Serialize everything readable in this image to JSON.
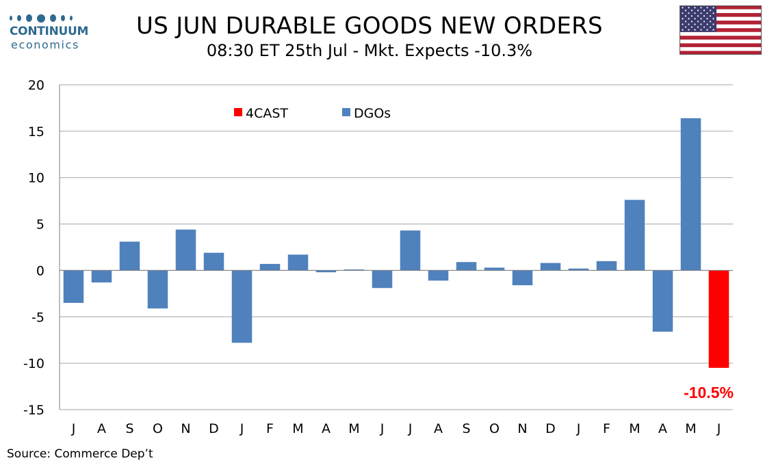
{
  "logo": {
    "name": "CONTINUUM",
    "sub": "economics"
  },
  "header": {
    "title": "US JUN DURABLE GOODS NEW ORDERS",
    "subtitle": "08:30 ET 25th Jul - Mkt. Expects -10.3%"
  },
  "footer": {
    "source": "Source: Commerce Dep’t"
  },
  "flag_icon": "us-flag-icon",
  "colors": {
    "dgo": "#4f81bd",
    "forecast": "#ff0000",
    "grid": "#a6a6a6",
    "logo": "#2e6a8f"
  },
  "chart_data": {
    "type": "bar",
    "title": "US JUN DURABLE GOODS NEW ORDERS",
    "xlabel": "",
    "ylabel": "",
    "ylim": [
      -15,
      20
    ],
    "yticks": [
      -15,
      -10,
      -5,
      0,
      5,
      10,
      15,
      20
    ],
    "grid": true,
    "legend_position": "top-center",
    "categories": [
      "J",
      "A",
      "S",
      "O",
      "N",
      "D",
      "J",
      "F",
      "M",
      "A",
      "M",
      "J",
      "J",
      "A",
      "S",
      "O",
      "N",
      "D",
      "J",
      "F",
      "M",
      "A",
      "M",
      "J"
    ],
    "series": [
      {
        "name": "DGOs",
        "color": "#4f81bd",
        "values": [
          -3.5,
          -1.3,
          3.1,
          -4.1,
          4.4,
          1.9,
          -7.8,
          0.7,
          1.7,
          -0.2,
          0.1,
          -1.9,
          4.3,
          -1.1,
          0.9,
          0.3,
          -1.6,
          0.8,
          0.2,
          1.0,
          7.6,
          -6.6,
          16.4,
          null
        ]
      },
      {
        "name": "4CAST",
        "color": "#ff0000",
        "values": [
          null,
          null,
          null,
          null,
          null,
          null,
          null,
          null,
          null,
          null,
          null,
          null,
          null,
          null,
          null,
          null,
          null,
          null,
          null,
          null,
          null,
          null,
          null,
          -10.5
        ]
      }
    ],
    "annotations": [
      {
        "text": "-10.5%",
        "category_index": 23,
        "color": "#ff0000"
      }
    ]
  }
}
